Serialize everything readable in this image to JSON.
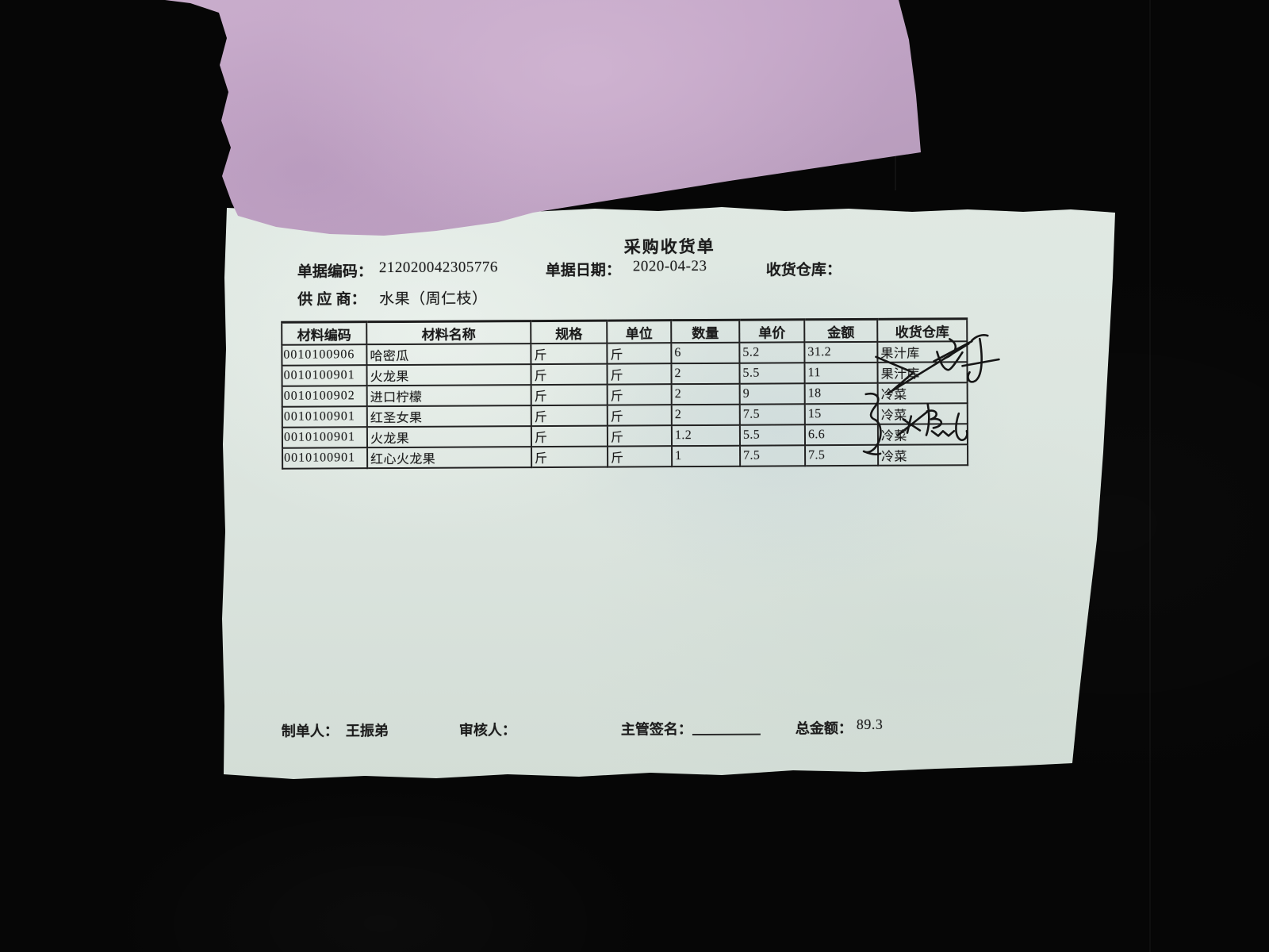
{
  "document": {
    "title": "采购收货单",
    "fields": {
      "doc_no_label": "单据编码：",
      "doc_no": "212020042305776",
      "date_label": "单据日期：",
      "date": "2020-04-23",
      "warehouse_label": "收货仓库：",
      "warehouse_value": "",
      "supplier_label": "供 应 商：",
      "supplier": "水果（周仁枝）"
    },
    "table": {
      "headers": [
        "材料编码",
        "材料名称",
        "规格",
        "单位",
        "数量",
        "单价",
        "金额",
        "收货仓库"
      ],
      "rows": [
        [
          "0010100906",
          "哈密瓜",
          "斤",
          "斤",
          "6",
          "5.2",
          "31.2",
          "果汁库"
        ],
        [
          "0010100901",
          "火龙果",
          "斤",
          "斤",
          "2",
          "5.5",
          "11",
          "果汁库"
        ],
        [
          "0010100902",
          "进口柠檬",
          "斤",
          "斤",
          "2",
          "9",
          "18",
          "冷菜"
        ],
        [
          "0010100901",
          "红圣女果",
          "斤",
          "斤",
          "2",
          "7.5",
          "15",
          "冷菜"
        ],
        [
          "0010100901",
          "火龙果",
          "斤",
          "斤",
          "1.2",
          "5.5",
          "6.6",
          "冷菜"
        ],
        [
          "0010100901",
          "红心火龙果",
          "斤",
          "斤",
          "1",
          "7.5",
          "7.5",
          "冷菜"
        ]
      ]
    },
    "footer": {
      "preparer_label": "制单人：",
      "preparer": "王振弟",
      "reviewer_label": "审核人：",
      "reviewer": "",
      "signature_label": "主管签名：",
      "total_label": "总金额：",
      "total": "89.3"
    }
  },
  "colors": {
    "background": "#060606",
    "receipt_paper": "#dbe4de",
    "pink_paper": "#c2a4c6",
    "ink": "#1c1c1c"
  }
}
